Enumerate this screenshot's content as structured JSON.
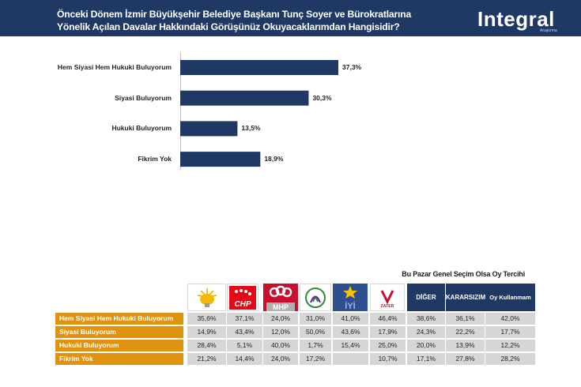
{
  "header": {
    "title_line1": "Önceki Dönem İzmir Büyükşehir Belediye Başkanı Tunç Soyer  ve Bürokratlarına",
    "title_line2": "Yönelik Açılan Davalar Hakkındaki Görüşünüz Okuyacaklarımdan Hangisidir?",
    "brand": "Integral",
    "brand_sub": "Araştırma"
  },
  "colors": {
    "header_bg": "#1f3864",
    "bar": "#1f3864",
    "row_label_bg": "#e0930f",
    "cell_bg": "#d6d6d6"
  },
  "chart_data": [
    {
      "type": "bar",
      "orientation": "horizontal",
      "title": "Önceki Dönem İzmir Büyükşehir Belediye Başkanı Tunç Soyer  ve Bürokratlarına Yönelik Açılan Davalar Hakkındaki Görüşünüz Okuyacaklarımdan Hangisidir?",
      "categories": [
        "Hem Siyasi Hem Hukuki Buluyorum",
        "Siyasi Buluyorum",
        "Hukuki Buluyorum",
        "Fikrim Yok"
      ],
      "values": [
        37.3,
        30.3,
        13.5,
        18.9
      ],
      "value_labels": [
        "37,3%",
        "30,3%",
        "13,5%",
        "18,9%"
      ],
      "xlim": [
        0,
        40
      ]
    },
    {
      "type": "table",
      "title": "Bu Pazar Genel Seçim Olsa Oy Tercihi",
      "columns": [
        {
          "name": "AK Parti",
          "icon": "ak-parti-logo-icon"
        },
        {
          "name": "CHP",
          "icon": "chp-logo-icon"
        },
        {
          "name": "MHP",
          "icon": "mhp-logo-icon"
        },
        {
          "name": "DEM",
          "icon": "dem-logo-icon"
        },
        {
          "name": "İYİ",
          "icon": "iyi-logo-icon"
        },
        {
          "name": "Zafer Partisi",
          "icon": "zafer-logo-icon"
        },
        {
          "name": "DİĞER",
          "text": "DİĞER"
        },
        {
          "name": "KARARSIZIM",
          "text": "KARARSIZIM"
        },
        {
          "name": "Oy Kullanmam",
          "text": "Oy Kullanmam"
        }
      ],
      "rows": [
        {
          "label": "Hem Siyasi Hem Hukuki Buluyorum",
          "values": [
            "35,6%",
            "37,1%",
            "24,0%",
            "31,0%",
            "41,0%",
            "46,4%",
            "38,6%",
            "36,1%",
            "42,0%"
          ]
        },
        {
          "label": "Siyasi Buluyorum",
          "values": [
            "14,9%",
            "43,4%",
            "12,0%",
            "50,0%",
            "43,6%",
            "17,9%",
            "24,3%",
            "22,2%",
            "17,7%"
          ]
        },
        {
          "label": "Hukuki Buluyorum",
          "values": [
            "28,4%",
            "5,1%",
            "40,0%",
            "1,7%",
            "15,4%",
            "25,0%",
            "20,0%",
            "13,9%",
            "12,2%"
          ]
        },
        {
          "label": "Fikrim Yok",
          "values": [
            "21,2%",
            "14,4%",
            "24,0%",
            "17,2%",
            "",
            "10,7%",
            "17,1%",
            "27,8%",
            "28,2%"
          ]
        }
      ]
    }
  ],
  "logos": {
    "chp": "CHP",
    "mhp": "MHP",
    "iyi": "İYİ",
    "zafer": "ZAFER"
  }
}
